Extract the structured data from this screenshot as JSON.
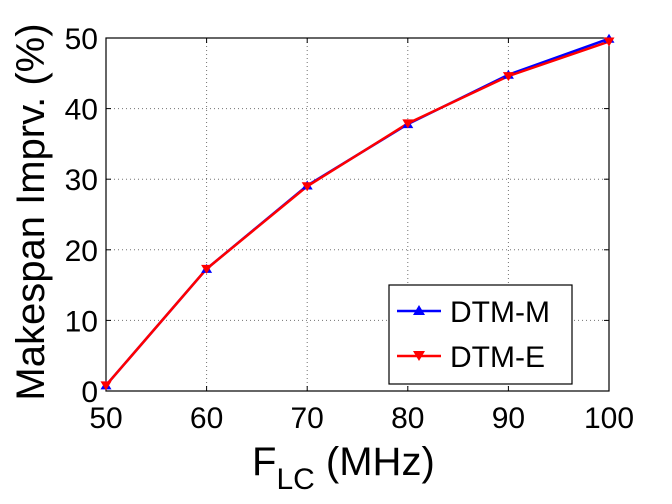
{
  "chart_data": {
    "type": "line",
    "x": [
      50,
      60,
      70,
      80,
      90,
      100
    ],
    "xlabel_main": "F",
    "xlabel_sub": "LC",
    "xlabel_unit": " (MHz)",
    "ylabel": "Makespan Imprv. (%)",
    "xlim": [
      50,
      100
    ],
    "ylim": [
      0,
      50
    ],
    "xticks": [
      "50",
      "60",
      "70",
      "80",
      "90",
      "100"
    ],
    "yticks": [
      "0",
      "10",
      "20",
      "30",
      "40",
      "50"
    ],
    "grid": true,
    "legend_position": "bottom-right",
    "series": [
      {
        "name": "DTM-M",
        "color": "#0000ff",
        "marker": "triangle-up",
        "values": [
          0.8,
          17.3,
          29.1,
          37.8,
          44.8,
          49.9
        ]
      },
      {
        "name": "DTM-E",
        "color": "#ff0000",
        "marker": "triangle-down",
        "values": [
          0.8,
          17.3,
          29.0,
          37.9,
          44.6,
          49.5
        ]
      }
    ]
  }
}
